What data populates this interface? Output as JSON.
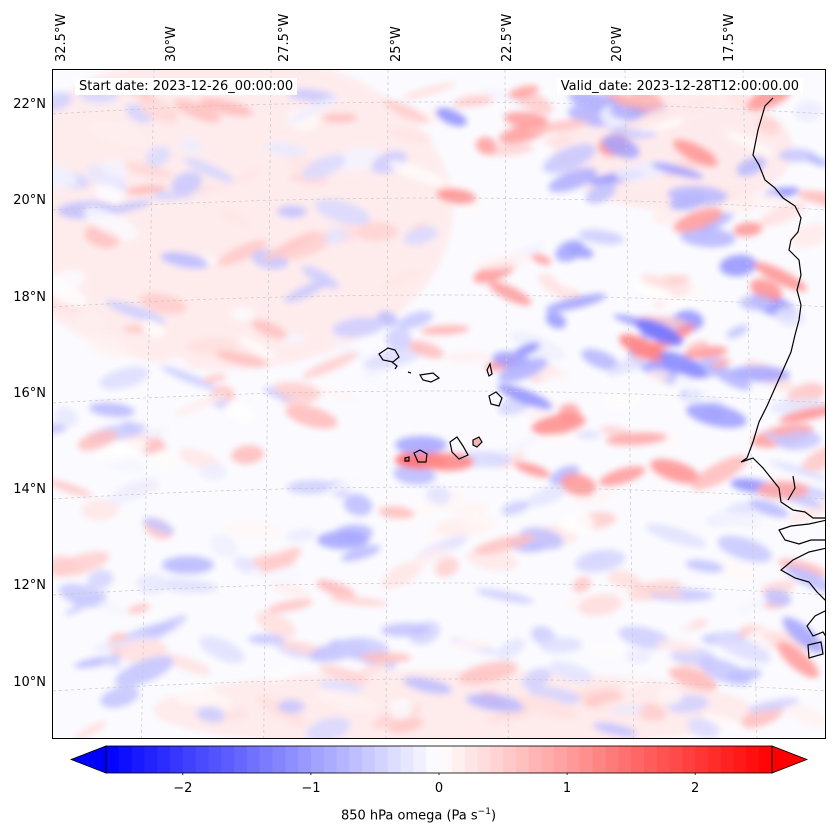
{
  "header": {
    "start_label": "Start date: 2023-12-26_00:00:00",
    "valid_label": "Valid_date: 2023-12-28T12:00:00.00"
  },
  "longitude_labels": [
    "32.5°W",
    "30°W",
    "27.5°W",
    "25°W",
    "22.5°W",
    "20°W",
    "17.5°W"
  ],
  "latitude_labels": [
    "22°N",
    "20°N",
    "18°N",
    "16°N",
    "14°N",
    "12°N",
    "10°N"
  ],
  "colorbar": {
    "min": -2.6,
    "max": 2.6,
    "ticks": [
      "−2",
      "−1",
      "0",
      "1",
      "2"
    ],
    "tick_values": [
      -2,
      -1,
      0,
      1,
      2
    ],
    "label_main": "850 hPa omega (Pa s",
    "label_sup": "−1",
    "label_end": ")",
    "negative_color": "#0000ff",
    "positive_color": "#ff0000",
    "extend": "both"
  },
  "map": {
    "field": "850 hPa omega",
    "projection": "Lambert conformal",
    "lon_range": [
      -33,
      -16
    ],
    "lat_range": [
      9,
      22.7
    ],
    "coastline_color": "#000000",
    "gridline_color": "#bbbbbb",
    "features": [
      "Cape Verde islands",
      "West African coast (Senegal, Gambia, Guinea-Bissau)"
    ]
  }
}
